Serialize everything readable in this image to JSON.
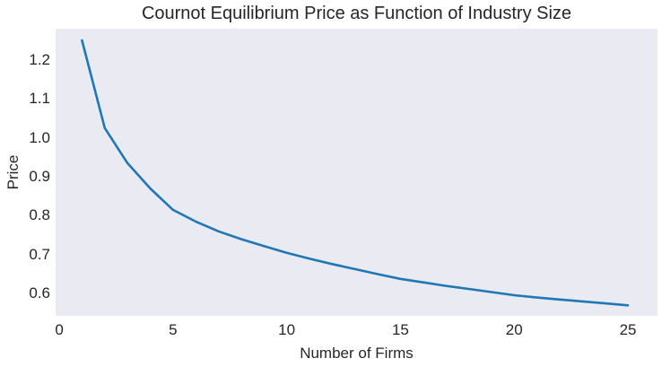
{
  "chart_data": {
    "type": "line",
    "title": "Cournot Equilibrium Price as Function of Industry Size",
    "xlabel": "Number of Firms",
    "ylabel": "Price",
    "x": [
      1,
      2,
      3,
      4,
      5,
      6,
      7,
      8,
      9,
      10,
      11,
      12,
      13,
      14,
      15,
      16,
      17,
      18,
      19,
      20,
      21,
      22,
      23,
      24,
      25
    ],
    "y": [
      1.25,
      1.025,
      0.935,
      0.87,
      0.815,
      0.785,
      0.76,
      0.74,
      0.722,
      0.705,
      0.69,
      0.676,
      0.663,
      0.65,
      0.638,
      0.629,
      0.62,
      0.612,
      0.604,
      0.596,
      0.59,
      0.585,
      0.58,
      0.575,
      0.57
    ],
    "xticks": [
      0,
      5,
      10,
      15,
      20,
      25
    ],
    "yticks": [
      0.6,
      0.7,
      0.8,
      0.9,
      1.0,
      1.1,
      1.2
    ],
    "xlim": [
      -0.16,
      26.3
    ],
    "ylim": [
      0.543,
      1.28
    ],
    "grid": false,
    "legend_position": "none",
    "line_color": "#1f77b4",
    "line_width": 2.6,
    "plot_bg_color": "#eaeaf2",
    "figure_bg_color": "#ffffff",
    "text_color": "#262626"
  }
}
